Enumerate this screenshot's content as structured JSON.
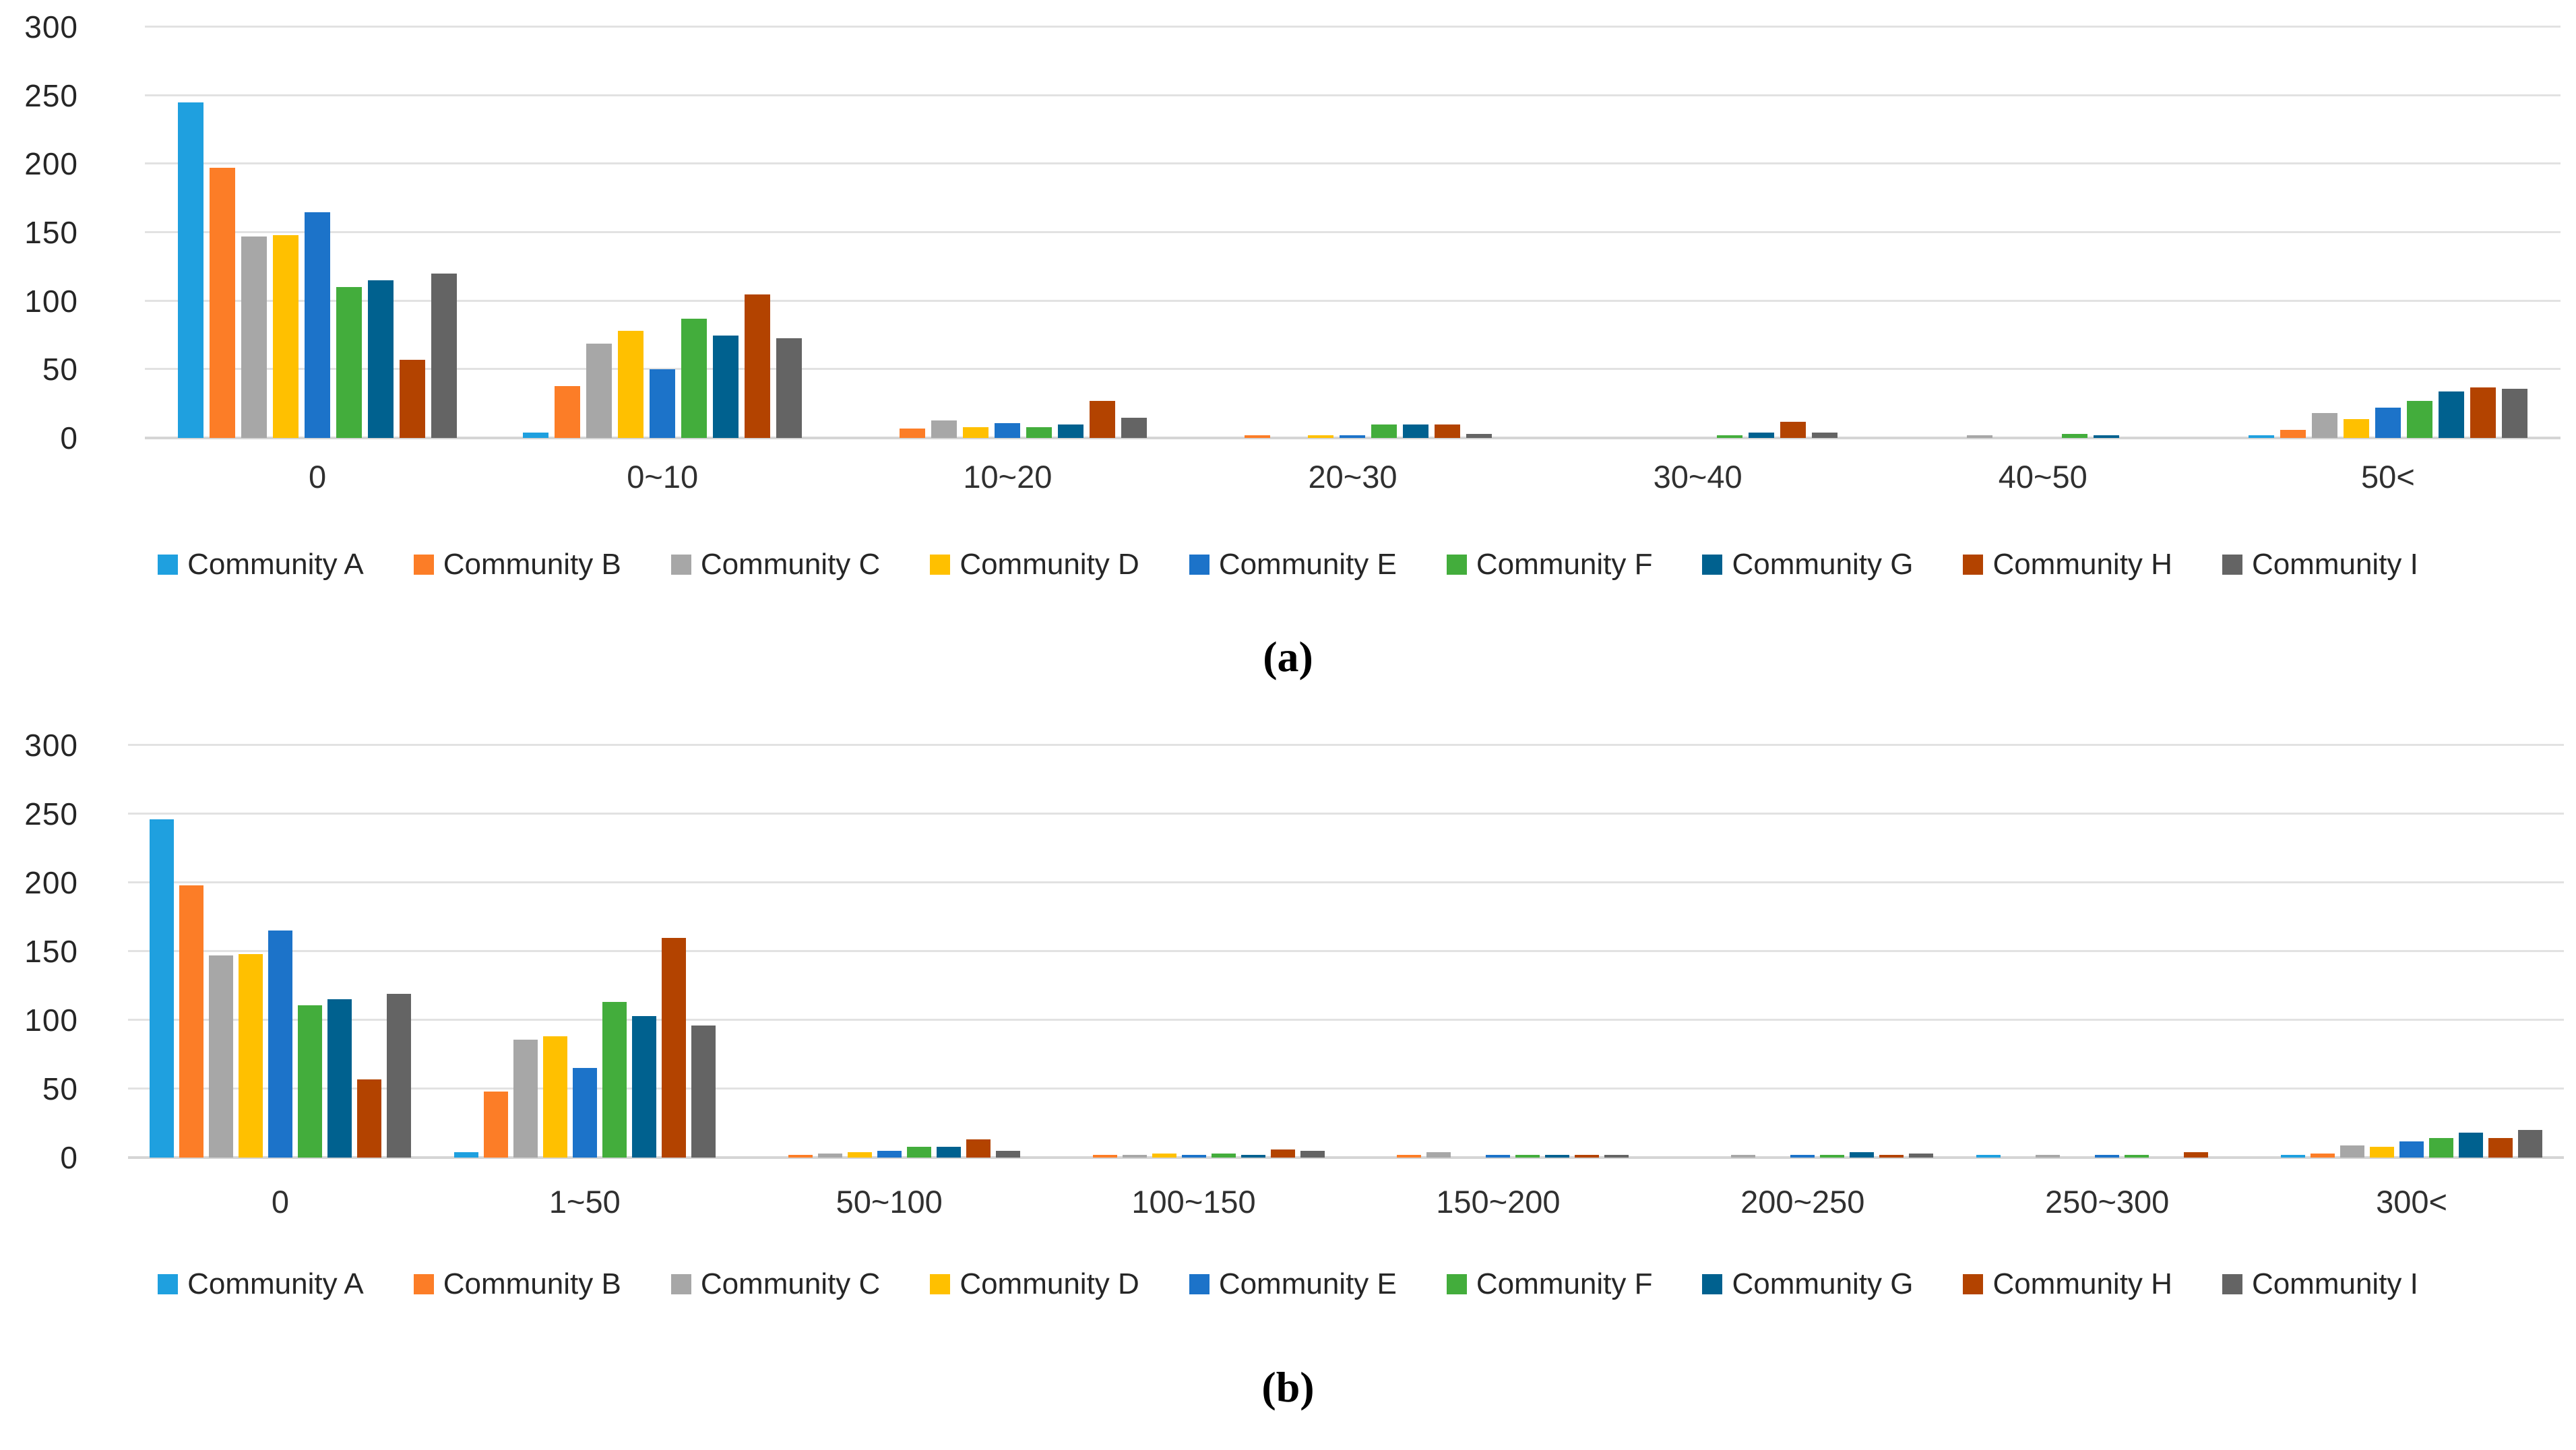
{
  "figure": {
    "background": "#ffffff",
    "text_color": "#262626",
    "gridline_color": "#e2e2e2"
  },
  "chart_data": [
    {
      "type": "bar",
      "caption": "(a)",
      "title": "",
      "xlabel": "",
      "ylabel": "",
      "ylim": [
        0,
        300
      ],
      "grid": true,
      "legend_position": "bottom",
      "y_ticks": [
        "300",
        "250",
        "200",
        "150",
        "100",
        "50",
        "0"
      ],
      "categories": [
        "0",
        "0~10",
        "10~20",
        "20~30",
        "30~40",
        "40~50",
        "50<"
      ],
      "series": [
        {
          "name": "Community A",
          "color": "#1FA0DF",
          "values": [
            245,
            4,
            0,
            0,
            0,
            0,
            2
          ]
        },
        {
          "name": "Community B",
          "color": "#FC7D27",
          "values": [
            197,
            38,
            7,
            2,
            0,
            0,
            6
          ]
        },
        {
          "name": "Community C",
          "color": "#A7A7A7",
          "values": [
            147,
            69,
            13,
            0,
            0,
            2,
            18
          ]
        },
        {
          "name": "Community D",
          "color": "#FFC000",
          "values": [
            148,
            78,
            8,
            2,
            0,
            0,
            14
          ]
        },
        {
          "name": "Community E",
          "color": "#1C73C9",
          "values": [
            165,
            50,
            11,
            2,
            0,
            0,
            22
          ]
        },
        {
          "name": "Community F",
          "color": "#43AD3C",
          "values": [
            110,
            87,
            8,
            10,
            2,
            3,
            27
          ]
        },
        {
          "name": "Community G",
          "color": "#00618F",
          "values": [
            115,
            75,
            10,
            10,
            4,
            2,
            34
          ]
        },
        {
          "name": "Community H",
          "color": "#B34300",
          "values": [
            57,
            105,
            27,
            10,
            12,
            0,
            37
          ]
        },
        {
          "name": "Community I",
          "color": "#646464",
          "values": [
            120,
            73,
            15,
            3,
            4,
            0,
            36
          ]
        }
      ]
    },
    {
      "type": "bar",
      "caption": "(b)",
      "title": "",
      "xlabel": "",
      "ylabel": "",
      "ylim": [
        0,
        300
      ],
      "grid": true,
      "legend_position": "bottom",
      "y_ticks": [
        "300",
        "250",
        "200",
        "150",
        "100",
        "50",
        "0"
      ],
      "categories": [
        "0",
        "1~50",
        "50~100",
        "100~150",
        "150~200",
        "200~250",
        "250~300",
        "300<"
      ],
      "series": [
        {
          "name": "Community A",
          "color": "#1FA0DF",
          "values": [
            246,
            4,
            0,
            0,
            0,
            0,
            2,
            2
          ]
        },
        {
          "name": "Community B",
          "color": "#FC7D27",
          "values": [
            198,
            48,
            2,
            2,
            2,
            0,
            0,
            3
          ]
        },
        {
          "name": "Community C",
          "color": "#A7A7A7",
          "values": [
            147,
            86,
            3,
            2,
            4,
            2,
            2,
            9
          ]
        },
        {
          "name": "Community D",
          "color": "#FFC000",
          "values": [
            148,
            88,
            4,
            3,
            0,
            0,
            0,
            8
          ]
        },
        {
          "name": "Community E",
          "color": "#1C73C9",
          "values": [
            165,
            65,
            5,
            2,
            2,
            2,
            2,
            12
          ]
        },
        {
          "name": "Community F",
          "color": "#43AD3C",
          "values": [
            111,
            113,
            8,
            3,
            2,
            2,
            2,
            14
          ]
        },
        {
          "name": "Community G",
          "color": "#00618F",
          "values": [
            115,
            103,
            8,
            2,
            2,
            4,
            0,
            18
          ]
        },
        {
          "name": "Community H",
          "color": "#B34300",
          "values": [
            57,
            160,
            13,
            6,
            2,
            2,
            4,
            14
          ]
        },
        {
          "name": "Community I",
          "color": "#646464",
          "values": [
            119,
            96,
            5,
            5,
            2,
            3,
            0,
            20
          ]
        }
      ]
    }
  ]
}
